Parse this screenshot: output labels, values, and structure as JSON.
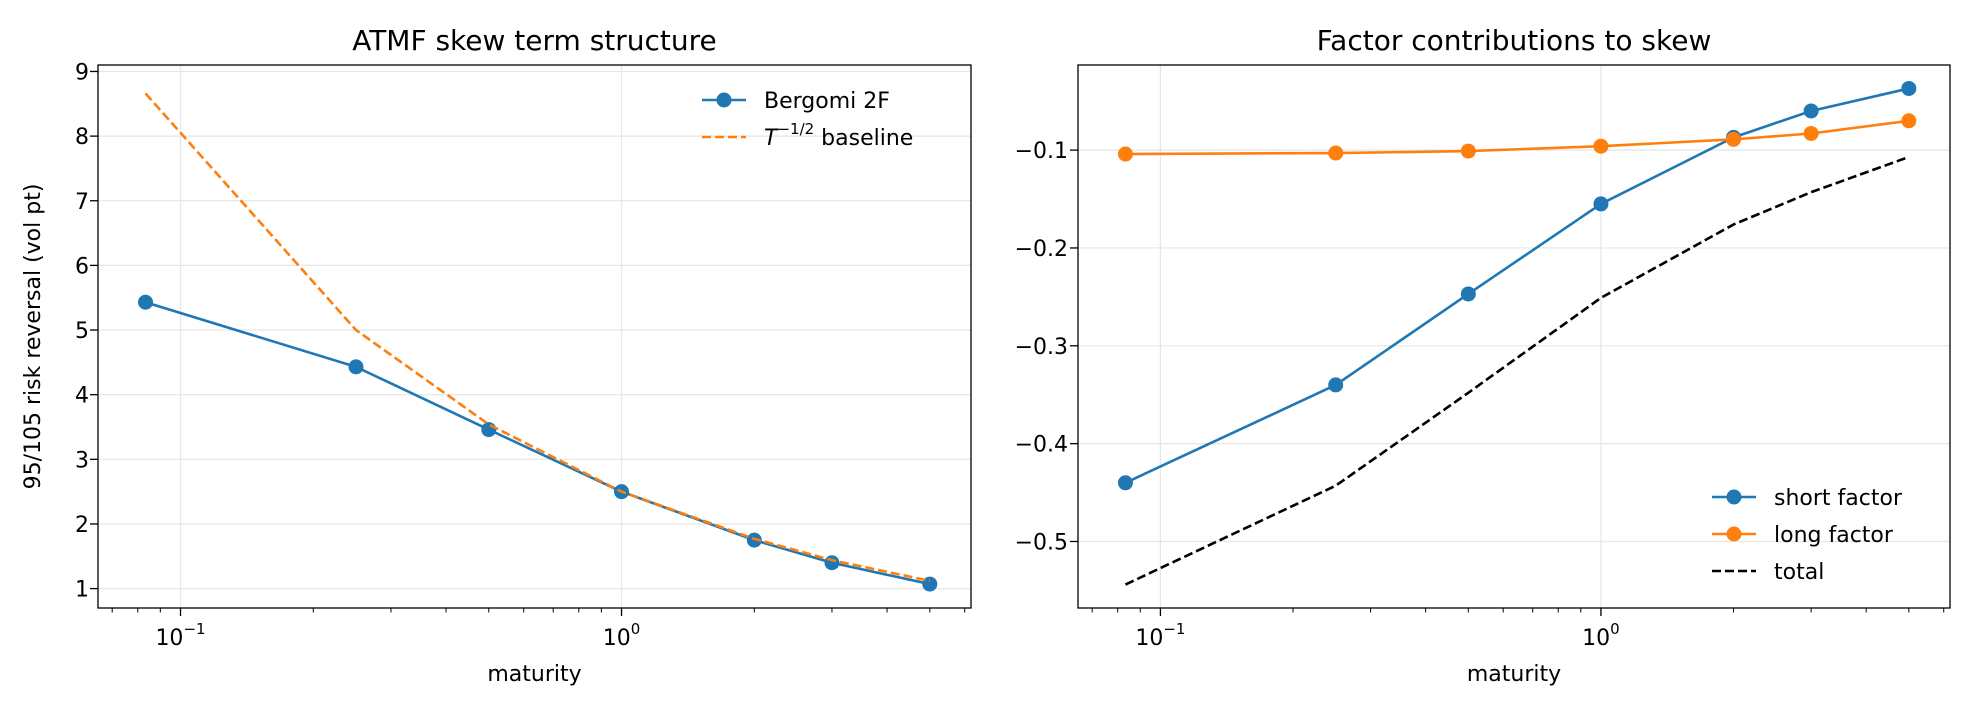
{
  "chart_data": [
    {
      "type": "line",
      "title": "ATMF skew term structure",
      "xlabel": "maturity",
      "ylabel": "95/105 risk reversal (vol pt)",
      "xscale": "log",
      "xlim": [
        0.065,
        6.2
      ],
      "ylim": [
        0.7,
        9.1
      ],
      "xticks": [
        {
          "value": 0.1,
          "base": "10",
          "exp": "−1"
        },
        {
          "value": 1,
          "base": "10",
          "exp": "0"
        }
      ],
      "yticks": [
        1,
        2,
        3,
        4,
        5,
        6,
        7,
        8,
        9
      ],
      "grid": true,
      "legend_position": "upper-right",
      "series": [
        {
          "name": "Bergomi 2F",
          "color": "#1f77b4",
          "style": "solid",
          "marker": true,
          "x": [
            0.0833,
            0.25,
            0.5,
            1,
            2,
            3,
            5
          ],
          "y": [
            5.43,
            4.43,
            3.46,
            2.5,
            1.75,
            1.4,
            1.07
          ]
        },
        {
          "name_parts": {
            "base": "T",
            "exp": "−1/2",
            "rest": " baseline"
          },
          "color": "#ff7f0e",
          "style": "dashed",
          "marker": false,
          "x": [
            0.0833,
            0.25,
            0.5,
            1,
            2,
            3,
            5
          ],
          "y": [
            8.66,
            5.0,
            3.54,
            2.5,
            1.77,
            1.44,
            1.12
          ]
        }
      ]
    },
    {
      "type": "line",
      "title": "Factor contributions to skew",
      "xlabel": "maturity",
      "ylabel": "",
      "xscale": "log",
      "xlim": [
        0.065,
        6.2
      ],
      "ylim": [
        -0.568,
        -0.013
      ],
      "xticks": [
        {
          "value": 0.1,
          "base": "10",
          "exp": "−1"
        },
        {
          "value": 1,
          "base": "10",
          "exp": "0"
        }
      ],
      "yticks": [
        {
          "value": -0.5,
          "label": "−0.5"
        },
        {
          "value": -0.4,
          "label": "−0.4"
        },
        {
          "value": -0.3,
          "label": "−0.3"
        },
        {
          "value": -0.2,
          "label": "−0.2"
        },
        {
          "value": -0.1,
          "label": "−0.1"
        }
      ],
      "grid": true,
      "legend_position": "lower-right",
      "series": [
        {
          "name": "short factor",
          "color": "#1f77b4",
          "style": "solid",
          "marker": true,
          "x": [
            0.0833,
            0.25,
            0.5,
            1,
            2,
            3,
            5
          ],
          "y": [
            -0.44,
            -0.34,
            -0.247,
            -0.155,
            -0.087,
            -0.06,
            -0.037
          ]
        },
        {
          "name": "long factor",
          "color": "#ff7f0e",
          "style": "solid",
          "marker": true,
          "x": [
            0.0833,
            0.25,
            0.5,
            1,
            2,
            3,
            5
          ],
          "y": [
            -0.104,
            -0.103,
            -0.101,
            -0.096,
            -0.089,
            -0.083,
            -0.07
          ]
        },
        {
          "name": "total",
          "color": "#000000",
          "style": "dashed",
          "marker": false,
          "x": [
            0.0833,
            0.25,
            0.5,
            1,
            2,
            3,
            5
          ],
          "y": [
            -0.544,
            -0.443,
            -0.348,
            -0.251,
            -0.176,
            -0.143,
            -0.107
          ]
        }
      ]
    }
  ]
}
